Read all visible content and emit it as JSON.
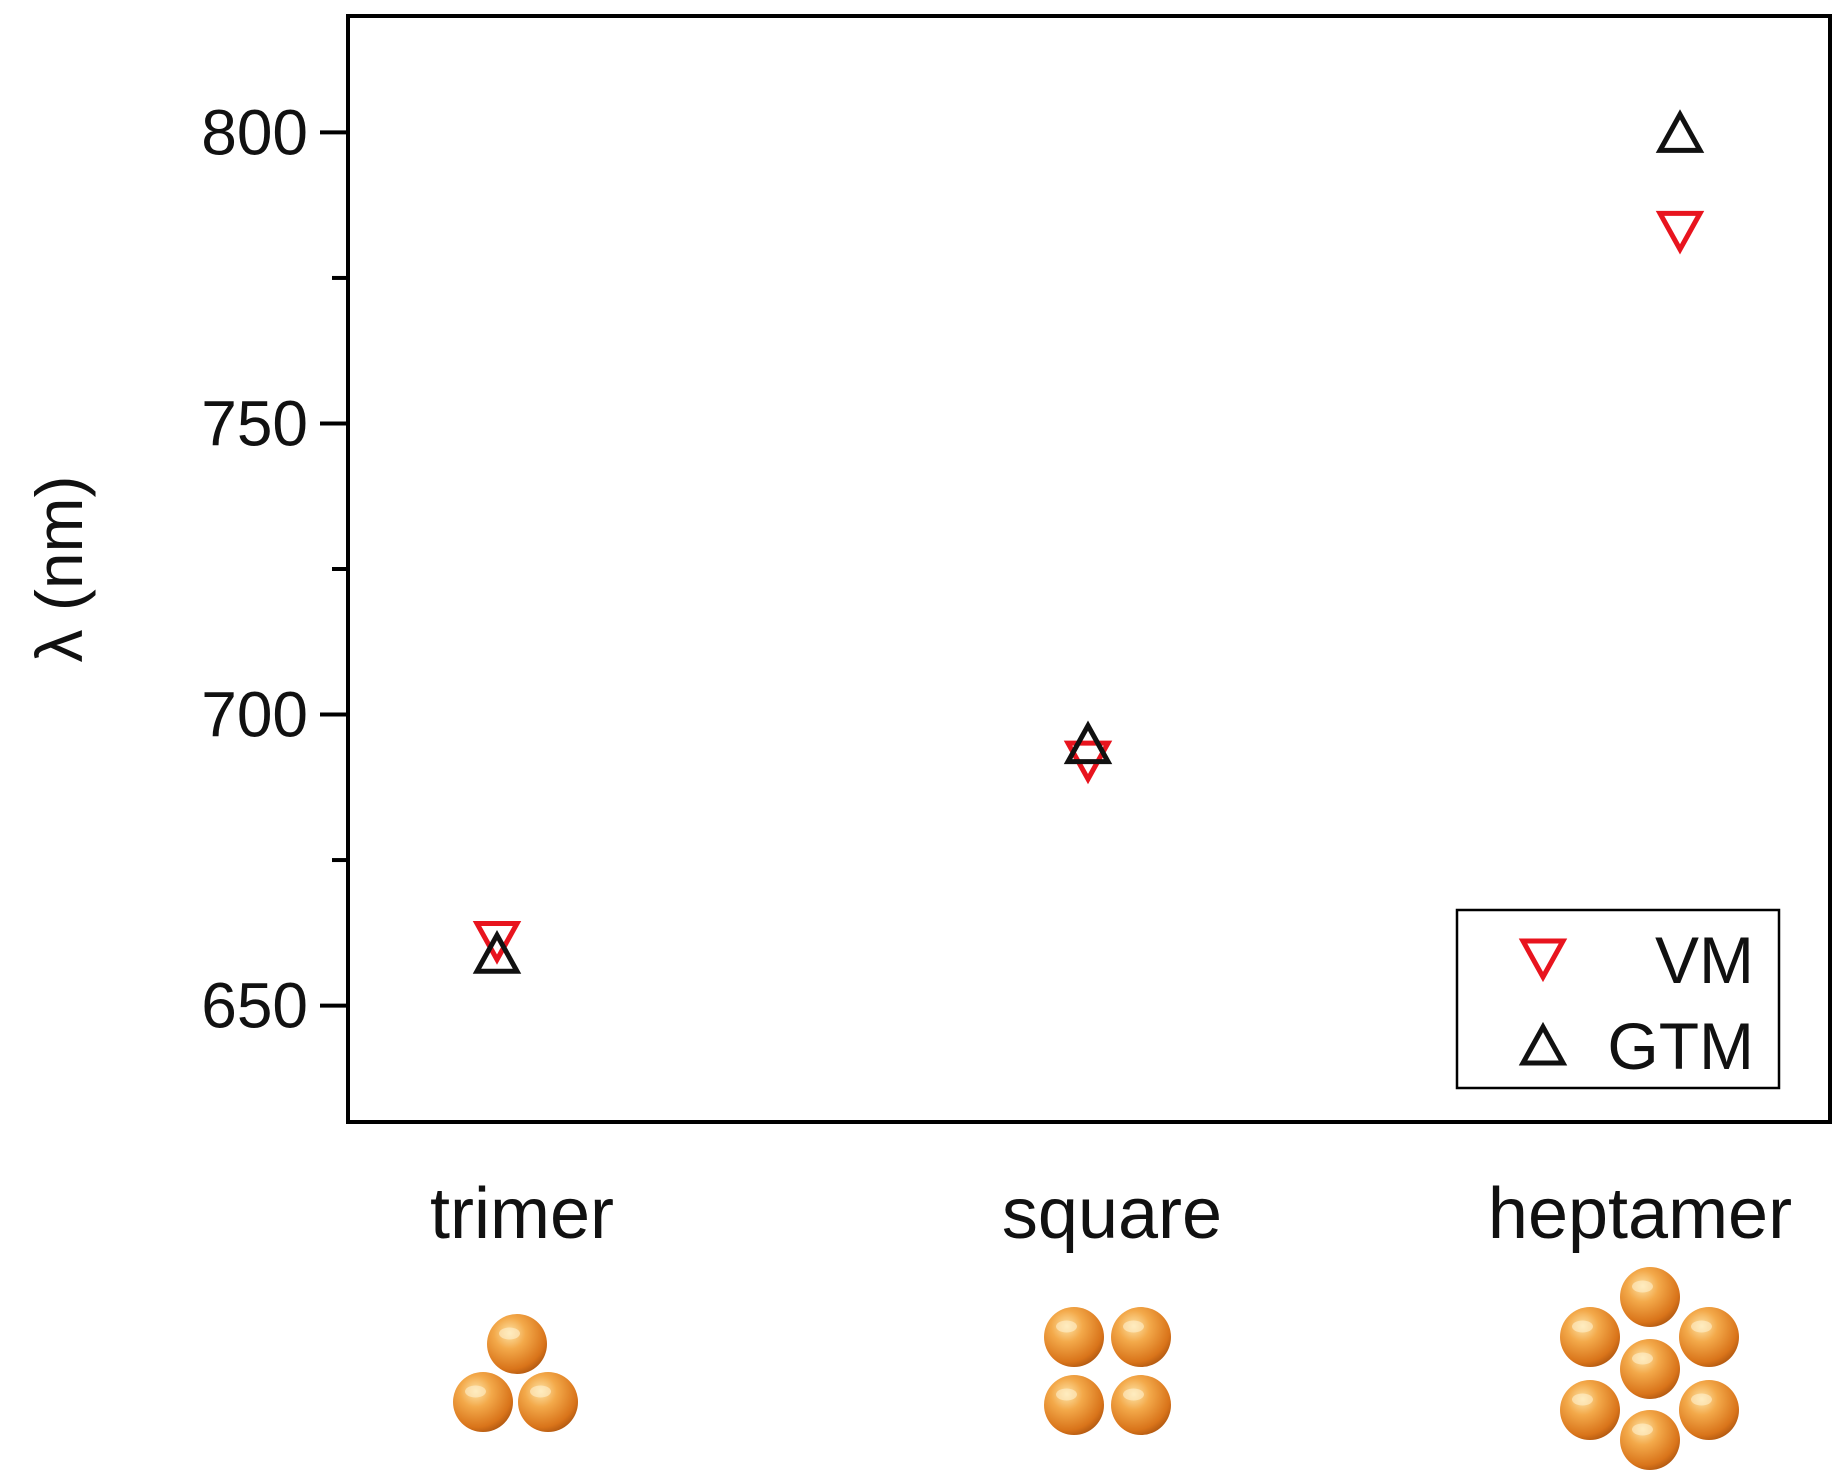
{
  "chart_data": {
    "type": "scatter",
    "title": "",
    "xlabel": "",
    "ylabel": "λ (nm)",
    "categories": [
      "trimer",
      "square",
      "heptamer"
    ],
    "ylim": [
      630,
      820
    ],
    "yticks_major": [
      650,
      700,
      750,
      800
    ],
    "yticks_minor": [
      675,
      725,
      775
    ],
    "grid": false,
    "legend_position": "bottom-right",
    "series": [
      {
        "name": "VM",
        "marker": "triangle-down",
        "color": "#e8141e",
        "values": [
          661,
          692,
          783
        ]
      },
      {
        "name": "GTM",
        "marker": "triangle-up",
        "color": "#111111",
        "values": [
          659,
          695,
          800
        ]
      }
    ],
    "particle_icons": [
      {
        "category": "trimer",
        "count": 3,
        "color": "#e8892a"
      },
      {
        "category": "square",
        "count": 4,
        "color": "#e8892a"
      },
      {
        "category": "heptamer",
        "count": 7,
        "color": "#e8892a"
      }
    ]
  }
}
